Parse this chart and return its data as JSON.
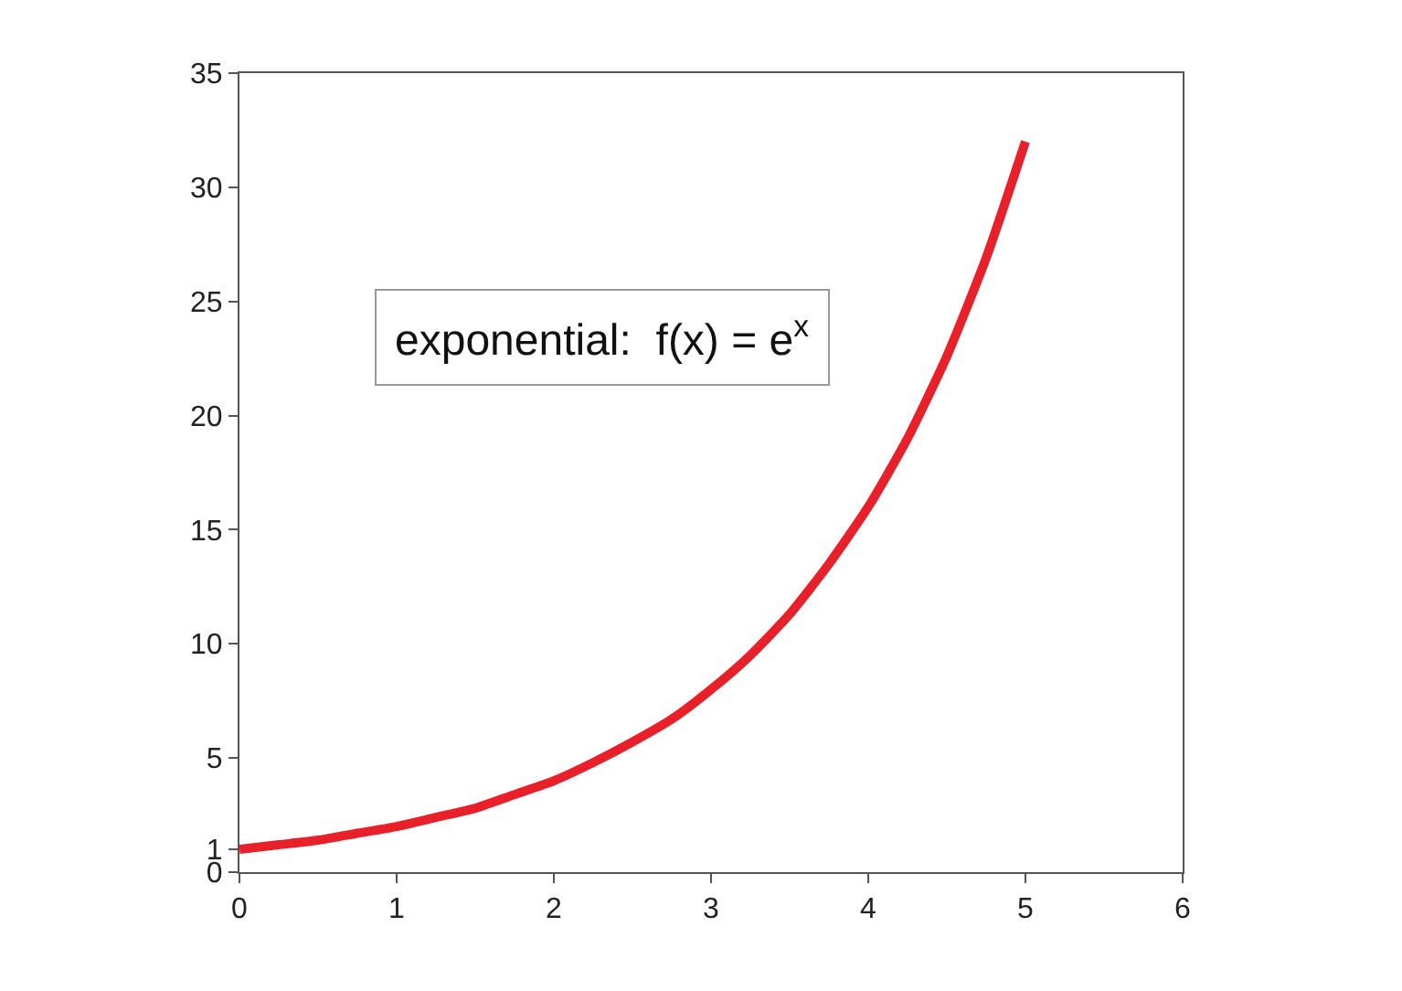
{
  "chart_data": {
    "type": "line",
    "x": [
      0,
      0.25,
      0.5,
      0.75,
      1,
      1.25,
      1.5,
      1.75,
      2,
      2.25,
      2.5,
      2.75,
      3,
      3.25,
      3.5,
      3.75,
      4,
      4.25,
      4.5,
      4.75,
      5
    ],
    "series": [
      {
        "color": "#e8202a",
        "values": [
          1,
          1.2,
          1.4,
          1.7,
          2,
          2.4,
          2.8,
          3.4,
          4,
          4.8,
          5.7,
          6.7,
          8,
          9.5,
          11.3,
          13.5,
          16,
          19,
          22.6,
          26.9,
          32
        ]
      }
    ],
    "xlim": [
      0,
      6
    ],
    "xticks": [
      0,
      1,
      2,
      3,
      4,
      5,
      6
    ],
    "ylim": [
      0,
      35
    ],
    "yticks": [
      0,
      1,
      5,
      10,
      15,
      20,
      25,
      30,
      35
    ],
    "grid": false,
    "legend": false,
    "marker": "none",
    "line_style": "solid",
    "annotations": [
      "exponential:  f(x) = e$^{x}$"
    ]
  }
}
